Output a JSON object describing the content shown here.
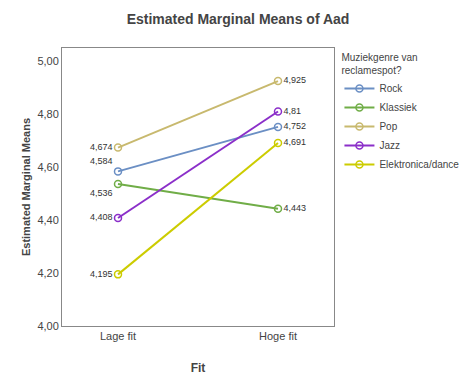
{
  "chart_data": {
    "type": "line",
    "title": "Estimated Marginal Means of Aad",
    "xlabel": "Fit",
    "ylabel": "Estimated Marginal Means",
    "categories": [
      "Lage fit",
      "Hoge fit"
    ],
    "series": [
      {
        "name": "Rock",
        "color": "#6B8FC4",
        "values": [
          4.584,
          4.752
        ],
        "value_labels": [
          "4,584",
          "4,752"
        ]
      },
      {
        "name": "Klassiek",
        "color": "#70AD47",
        "values": [
          4.536,
          4.443
        ],
        "value_labels": [
          "4,536",
          "4,443"
        ]
      },
      {
        "name": "Pop",
        "color": "#C8B96E",
        "values": [
          4.674,
          4.925
        ],
        "value_labels": [
          "4,674",
          "4,925"
        ]
      },
      {
        "name": "Jazz",
        "color": "#8B2FC9",
        "values": [
          4.408,
          4.81
        ],
        "value_labels": [
          "4,408",
          "4,81"
        ]
      },
      {
        "name": "Elektronica/dance",
        "color": "#CCCC00",
        "values": [
          4.195,
          4.691
        ],
        "value_labels": [
          "4,195",
          "4,691"
        ]
      }
    ],
    "ylim": [
      4.0,
      5.05
    ],
    "yticks": [
      {
        "value": 4.0,
        "label": "4,00"
      },
      {
        "value": 4.2,
        "label": "4,20"
      },
      {
        "value": 4.4,
        "label": "4,40"
      },
      {
        "value": 4.6,
        "label": "4,60"
      },
      {
        "value": 4.8,
        "label": "4,80"
      },
      {
        "value": 5.0,
        "label": "5,00"
      }
    ],
    "grid": false,
    "legend": "right",
    "legend_title": "Muziekgenre van\nreclamespot?",
    "data_labels": true,
    "marker": "circle-open",
    "line_style": "solid"
  }
}
